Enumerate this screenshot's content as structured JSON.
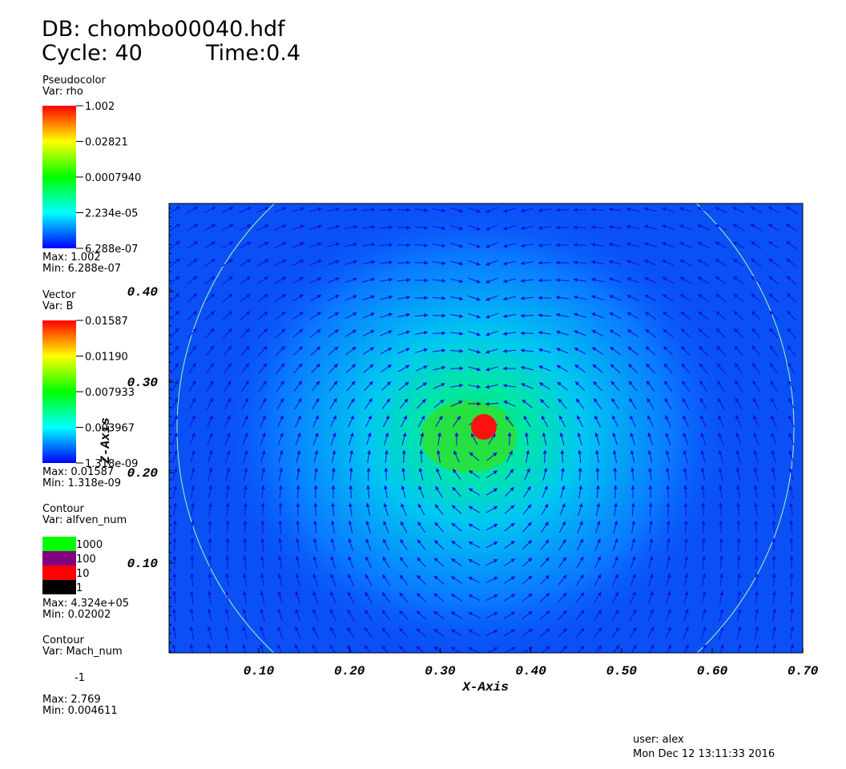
{
  "header": {
    "db": "DB: chombo00040.hdf",
    "cycle": "Cycle: 40",
    "time": "Time:0.4"
  },
  "legends": [
    {
      "title": "Pseudocolor",
      "var": "Var: rho",
      "labels": [
        "1.002",
        "0.02821",
        "0.0007940",
        "2.234e-05",
        "6.288e-07"
      ],
      "max": "Max:  1.002",
      "min": "Min:  6.288e-07"
    },
    {
      "title": "Vector",
      "var": "Var: B",
      "labels": [
        "0.01587",
        "0.01190",
        "0.007933",
        "0.003967",
        "1.318e-09"
      ],
      "max": "Max:  0.01587",
      "min": "Min:  1.318e-09"
    },
    {
      "title": "Contour",
      "var": "Var: alfven_num",
      "levels": [
        {
          "label": "1000",
          "color": "#00ff00"
        },
        {
          "label": "100",
          "color": "#800080"
        },
        {
          "label": "10",
          "color": "#ff0000"
        },
        {
          "label": "1",
          "color": "#000000"
        }
      ],
      "max": "Max:  4.324e+05",
      "min": "Min:  0.02002"
    },
    {
      "title": "Contour",
      "var": "Var: Mach_num",
      "levels": [
        {
          "label": "-1"
        }
      ],
      "max": "Max:  2.769",
      "min": "Min:  0.004611"
    }
  ],
  "axes": {
    "x_label": "X-Axis",
    "y_label": "Z-Axis",
    "x_ticks": [
      "0.10",
      "0.20",
      "0.30",
      "0.40",
      "0.50",
      "0.60",
      "0.70"
    ],
    "y_ticks": [
      "0.10",
      "0.20",
      "0.30",
      "0.40"
    ]
  },
  "footer": {
    "user": "user: alex",
    "date": "Mon Dec 12 13:11:33 2016"
  }
}
